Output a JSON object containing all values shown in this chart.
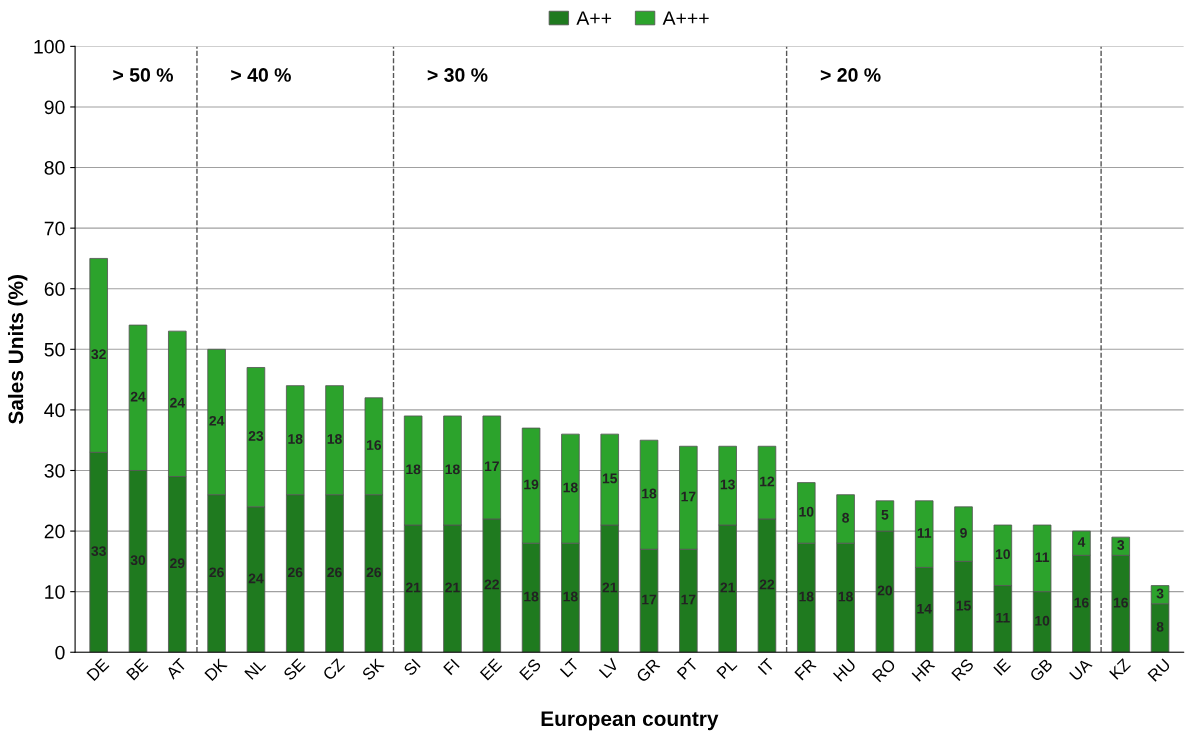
{
  "chart_data": {
    "type": "bar",
    "stacked": true,
    "xlabel": "European country",
    "ylabel": "Sales Units (%)",
    "categories": [
      "DE",
      "BE",
      "AT",
      "DK",
      "NL",
      "SE",
      "CZ",
      "SK",
      "SI",
      "FI",
      "EE",
      "ES",
      "LT",
      "LV",
      "GR",
      "PT",
      "PL",
      "IT",
      "FR",
      "HU",
      "RO",
      "HR",
      "RS",
      "IE",
      "GB",
      "UA",
      "KZ",
      "RU"
    ],
    "series": [
      {
        "name": "A++",
        "color": "#1f7a1f",
        "values": [
          33,
          30,
          29,
          26,
          24,
          26,
          26,
          26,
          21,
          21,
          22,
          18,
          18,
          21,
          17,
          17,
          21,
          22,
          18,
          18,
          20,
          14,
          15,
          11,
          10,
          16,
          16,
          8
        ]
      },
      {
        "name": "A+++",
        "color": "#2ca32c",
        "values": [
          32,
          24,
          24,
          24,
          23,
          18,
          18,
          16,
          18,
          18,
          17,
          19,
          18,
          15,
          18,
          17,
          13,
          12,
          10,
          8,
          5,
          11,
          9,
          10,
          11,
          4,
          3,
          3
        ]
      }
    ],
    "data_labels": true,
    "ylim": [
      0,
      100
    ],
    "yticks": [
      0,
      10,
      20,
      30,
      40,
      50,
      60,
      70,
      80,
      90,
      100
    ],
    "grid": "y",
    "legend": "top",
    "annotations": [
      "> 50 %",
      "> 40 %",
      "> 30 %",
      "> 20 %"
    ]
  }
}
